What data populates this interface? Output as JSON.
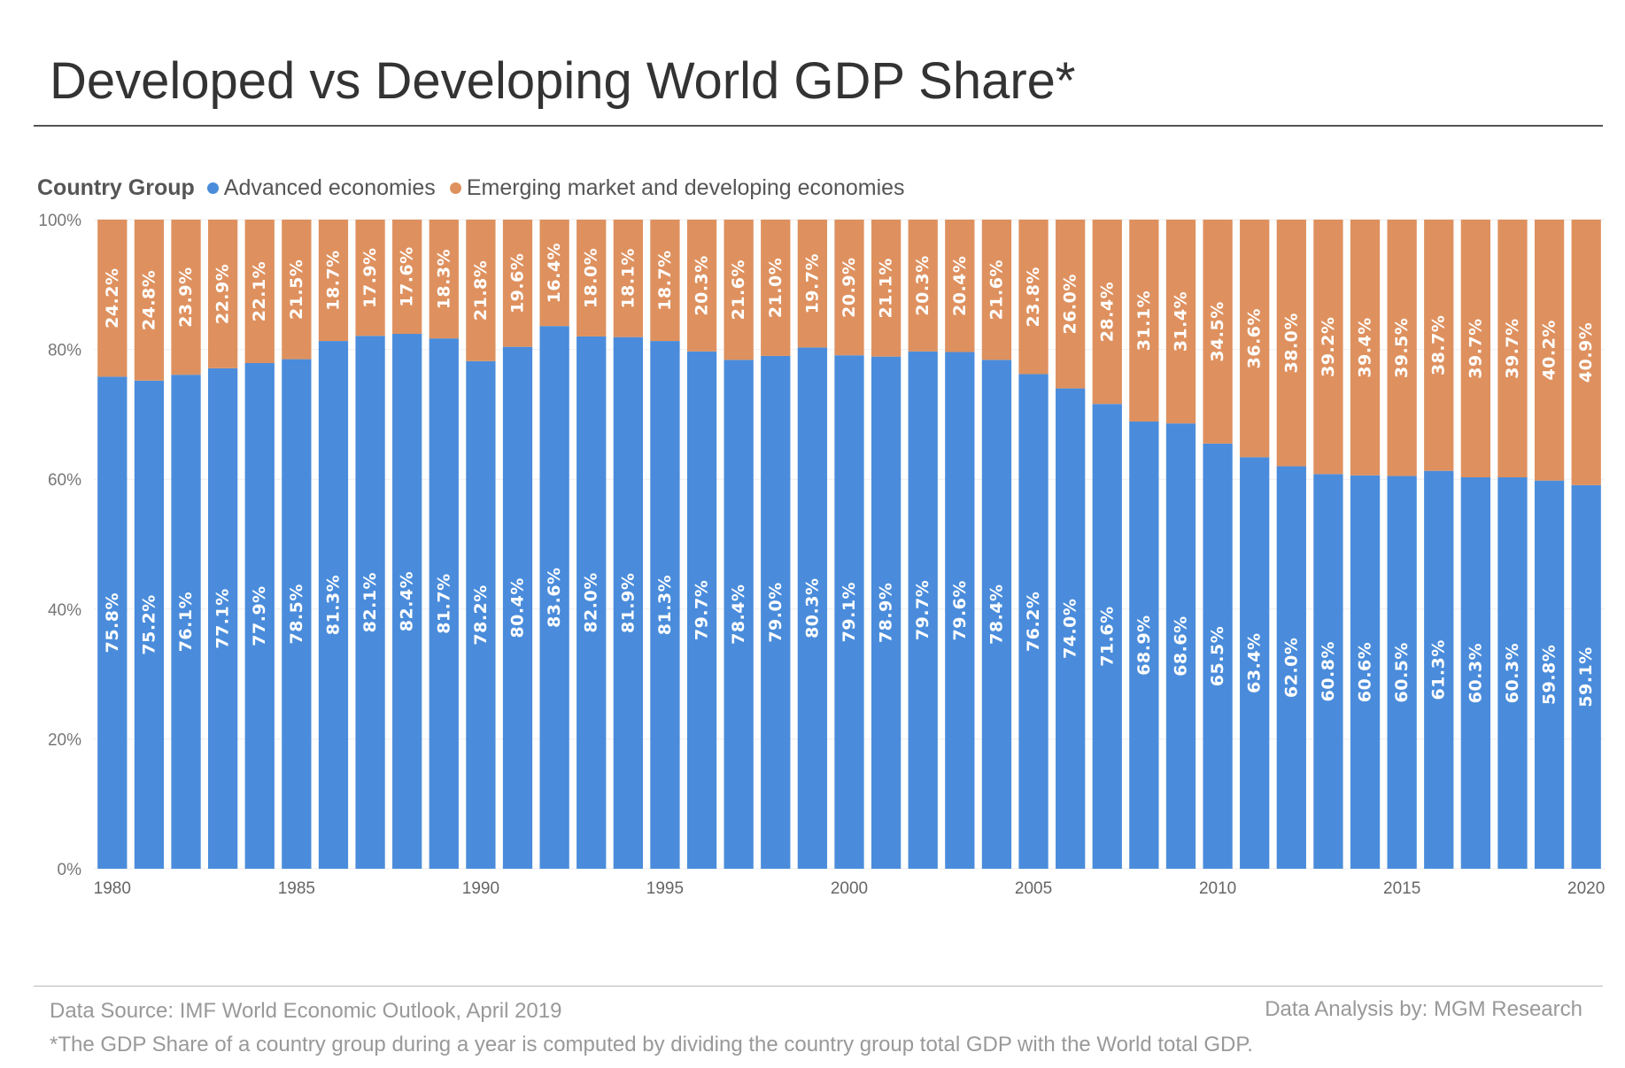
{
  "title": "Developed vs Developing World GDP Share*",
  "legend": {
    "title": "Country Group"
  },
  "footer": {
    "source": "Data Source: IMF World Economic Outlook, April 2019",
    "credit": "Data Analysis by: MGM Research",
    "note": "*The GDP Share of a country group during a year is computed by dividing the country group total GDP with the World total GDP."
  },
  "chart_data": {
    "type": "bar",
    "stacked": "100%",
    "title": "Developed vs Developing World GDP Share*",
    "xlabel": "",
    "ylabel": "",
    "ylim": [
      0,
      100
    ],
    "yticks": [
      "0%",
      "20%",
      "40%",
      "60%",
      "80%",
      "100%"
    ],
    "xticks": [
      "1980",
      "1985",
      "1990",
      "1995",
      "2000",
      "2005",
      "2010",
      "2015",
      "2020"
    ],
    "grid": true,
    "legend_position": "top-left",
    "categories": [
      1980,
      1981,
      1982,
      1983,
      1984,
      1985,
      1986,
      1987,
      1988,
      1989,
      1990,
      1991,
      1992,
      1993,
      1994,
      1995,
      1996,
      1997,
      1998,
      1999,
      2000,
      2001,
      2002,
      2003,
      2004,
      2005,
      2006,
      2007,
      2008,
      2009,
      2010,
      2011,
      2012,
      2013,
      2014,
      2015,
      2016,
      2017,
      2018,
      2019,
      2020
    ],
    "series": [
      {
        "name": "Advanced economies",
        "color": "#4A8CDB",
        "values": [
          75.8,
          75.2,
          76.1,
          77.1,
          77.9,
          78.5,
          81.3,
          82.1,
          82.4,
          81.7,
          78.2,
          80.4,
          83.6,
          82.0,
          81.9,
          81.3,
          79.7,
          78.4,
          79.0,
          80.3,
          79.1,
          78.9,
          79.7,
          79.6,
          78.4,
          76.2,
          74.0,
          71.6,
          68.9,
          68.6,
          65.5,
          63.4,
          62.0,
          60.8,
          60.6,
          60.5,
          61.3,
          60.3,
          60.3,
          59.8,
          59.1
        ]
      },
      {
        "name": "Emerging market and developing economies",
        "color": "#DE915F",
        "values": [
          24.2,
          24.8,
          23.9,
          22.9,
          22.1,
          21.5,
          18.7,
          17.9,
          17.6,
          18.3,
          21.8,
          19.6,
          16.4,
          18.0,
          18.1,
          18.7,
          20.3,
          21.6,
          21.0,
          19.7,
          20.9,
          21.1,
          20.3,
          20.4,
          21.6,
          23.8,
          26.0,
          28.4,
          31.1,
          31.4,
          34.5,
          36.6,
          38.0,
          39.2,
          39.4,
          39.5,
          38.7,
          39.7,
          39.7,
          40.2,
          40.9
        ]
      }
    ]
  }
}
